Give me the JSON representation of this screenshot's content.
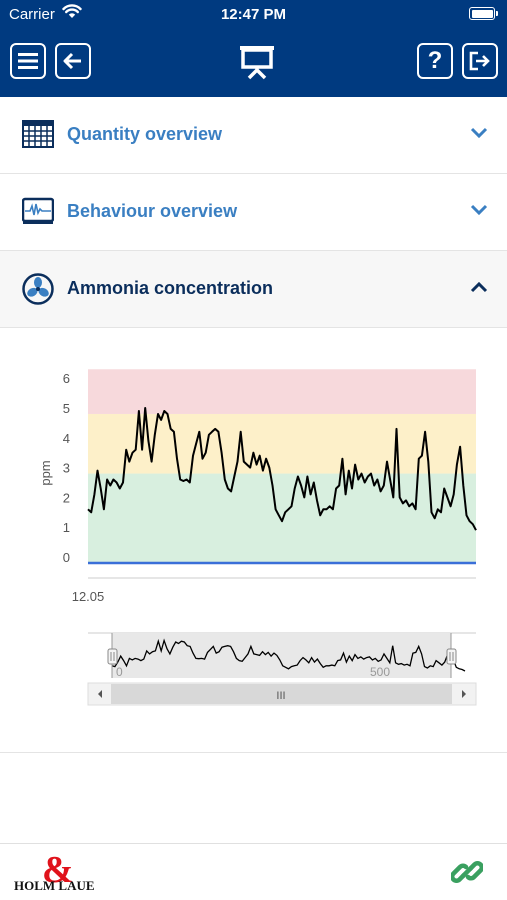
{
  "status_bar": {
    "carrier": "Carrier",
    "time": "12:47 PM"
  },
  "header": {
    "help_label": "?",
    "icons": [
      "menu-icon",
      "back-arrow-icon",
      "presentation-icon",
      "help-icon",
      "exit-icon"
    ]
  },
  "sections": [
    {
      "title": "Quantity overview",
      "icon": "calendar-grid-icon",
      "expanded": false
    },
    {
      "title": "Behaviour overview",
      "icon": "monitor-waveform-icon",
      "expanded": false
    },
    {
      "title": "Ammonia concentration",
      "icon": "fan-icon",
      "expanded": true
    }
  ],
  "colors": {
    "header": "#003a80",
    "accent": "#3a7fc2",
    "zone_red": "#f7d9dc",
    "zone_yellow": "#fdf0c9",
    "zone_green": "#d8efdf",
    "baseline": "#3a6fd8"
  },
  "footer": {
    "brand": "Holm & Laue",
    "logo_top": "&",
    "logo_text": "HOLM LAUE",
    "link_icon": "link-icon"
  },
  "chart_data": {
    "type": "line",
    "ylabel": "ppm",
    "y_ticks": [
      "0",
      "1",
      "2",
      "3",
      "4",
      "5",
      "6"
    ],
    "ylim": [
      0,
      6
    ],
    "x_tick_label": "12.05",
    "zones": [
      {
        "from": -0.2,
        "to": 2.8,
        "color": "green"
      },
      {
        "from": 2.8,
        "to": 4.8,
        "color": "yellow"
      },
      {
        "from": 4.8,
        "to": 6.3,
        "color": "red"
      }
    ],
    "baseline_value": -0.2,
    "navigator": {
      "labels": [
        "0",
        "500"
      ],
      "scroll_handle": "III"
    },
    "series": [
      {
        "values": [
          1.6,
          1.5,
          2.1,
          2.9,
          2.3,
          1.6,
          2.6,
          2.4,
          2.6,
          2.5,
          2.3,
          2.5,
          3.6,
          3.2,
          3.5,
          3.6,
          4.9,
          3.6,
          5,
          3.9,
          3.2,
          4.1,
          4.8,
          4.6,
          4.9,
          4.8,
          4.3,
          4.2,
          3.3,
          2.6,
          2.55,
          2.6,
          2.5,
          3.4,
          3.8,
          4.2,
          3.3,
          3.5,
          4.1,
          4.2,
          4.3,
          4.2,
          3.5,
          2.6,
          2.3,
          2.2,
          2.7,
          3.2,
          4.2,
          3.2,
          3.1,
          3.0,
          3.5,
          3.1,
          3.4,
          2.9,
          3.3,
          3.0,
          2.4,
          1.6,
          1.4,
          1.2,
          1.5,
          1.6,
          1.7,
          2.3,
          2.7,
          2.4,
          2.0,
          2.7,
          2.1,
          2.5,
          1.9,
          1.4,
          1.6,
          1.6,
          1.7,
          1.6,
          2.3,
          2.4,
          3.3,
          2.1,
          2.9,
          2.3,
          3.1,
          2.6,
          2.8,
          2.5,
          2.7,
          2.8,
          2.4,
          2.6,
          2.2,
          2.4,
          3.2,
          2.6,
          2.0,
          4.3,
          2.0,
          1.8,
          1.9,
          1.7,
          1.8,
          1.6,
          3.3,
          3.4,
          4.2,
          3.2,
          1.5,
          1.3,
          1.6,
          1.5,
          2.3,
          2.0,
          1.7,
          2.1,
          3.1,
          3.7,
          2.4,
          1.4,
          1.2,
          1.1,
          0.9
        ]
      }
    ]
  }
}
